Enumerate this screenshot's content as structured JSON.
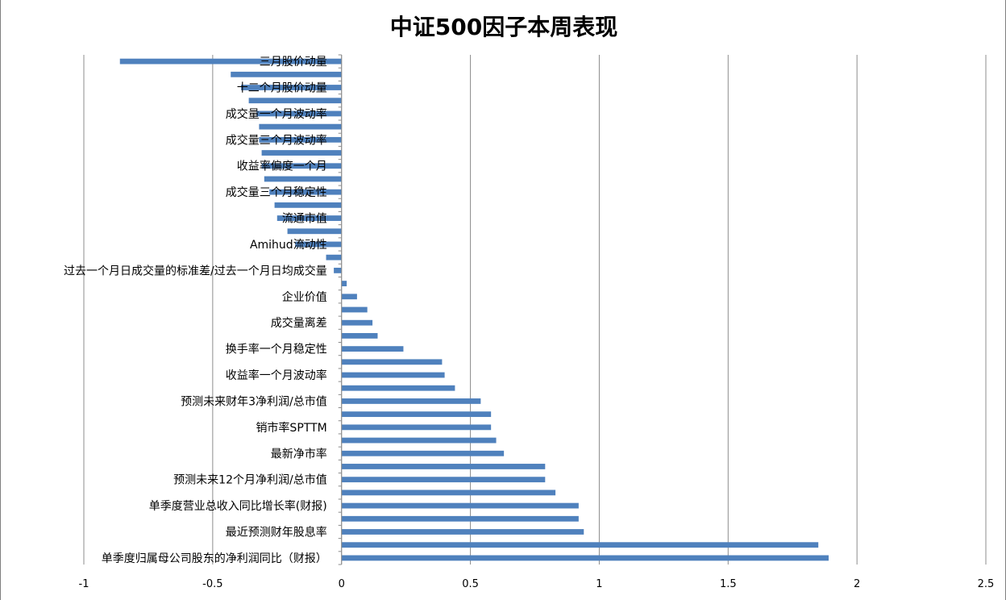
{
  "chart_data": {
    "type": "bar",
    "orientation": "horizontal",
    "title": "中证500因子本周表现",
    "xlabel": "",
    "ylabel": "",
    "xlim": [
      -1,
      2.5
    ],
    "xticks": [
      -1,
      -0.5,
      0,
      0.5,
      1,
      1.5,
      2,
      2.5
    ],
    "grid": true,
    "legend": "none",
    "bar_color": "#4F81BD",
    "categories": [
      "三月股价动量",
      "",
      "十二个月股价动量",
      "",
      "成交量一个月波动率",
      "",
      "成交量三个月波动率",
      "",
      "收益率偏度一个月",
      "",
      "成交量三个月稳定性",
      "",
      "流通市值",
      "",
      "Amihud流动性",
      "",
      "过去一个月日成交量的标准差/过去一个月日均成交量",
      "",
      "企业价值",
      "",
      "成交量离差",
      "",
      "换手率一个月稳定性",
      "",
      "收益率一个月波动率",
      "",
      "预测未来财年3净利润/总市值",
      "",
      "销市率SPTTM",
      "",
      "最新净市率",
      "",
      "预测未来12个月净利润/总市值",
      "",
      "单季度营业总收入同比增长率(财报)",
      "",
      "最近预测财年股息率",
      "",
      "单季度归属母公司股东的净利润同比（财报）"
    ],
    "values": [
      -0.86,
      -0.43,
      -0.39,
      -0.36,
      -0.33,
      -0.32,
      -0.32,
      -0.31,
      -0.31,
      -0.3,
      -0.28,
      -0.26,
      -0.25,
      -0.21,
      -0.18,
      -0.06,
      -0.03,
      0.02,
      0.06,
      0.1,
      0.12,
      0.14,
      0.24,
      0.39,
      0.4,
      0.44,
      0.54,
      0.58,
      0.58,
      0.6,
      0.63,
      0.79,
      0.79,
      0.83,
      0.92,
      0.92,
      0.94,
      1.85,
      1.89
    ]
  }
}
